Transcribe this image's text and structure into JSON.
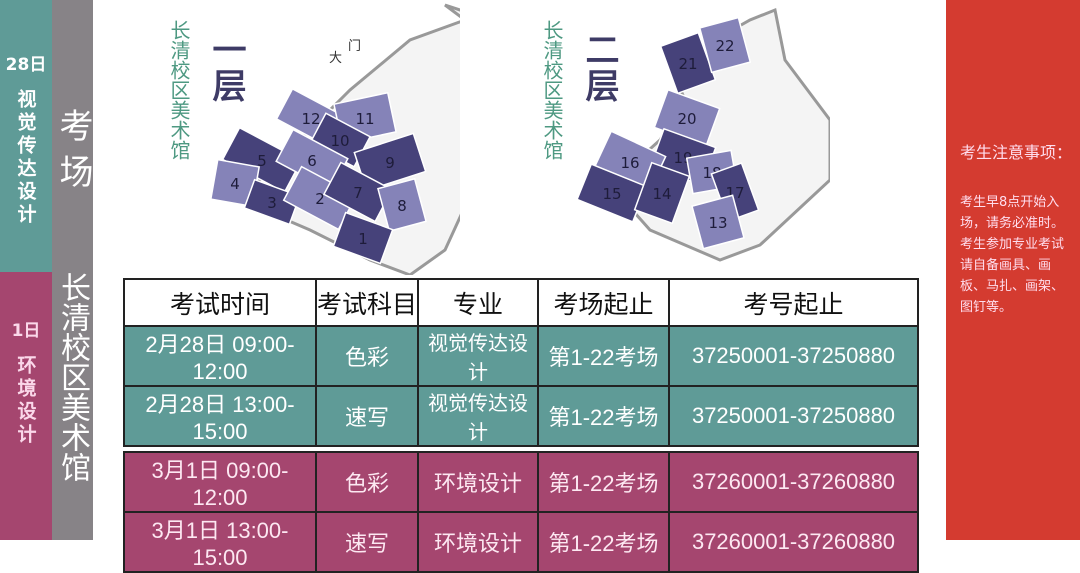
{
  "left_bands": [
    {
      "day": "28日",
      "major": "视觉传达设计"
    },
    {
      "day": "1日",
      "major": "环境设计"
    }
  ],
  "side_title": {
    "top": "考场",
    "bottom": "长清校区美术馆"
  },
  "floor1": {
    "building": "长清校区美术馆",
    "floor": "一层",
    "entrance": [
      "大",
      "门"
    ],
    "rooms": [
      {
        "label": "12",
        "shade": "light"
      },
      {
        "label": "11",
        "shade": "light"
      },
      {
        "label": "10",
        "shade": "dark"
      },
      {
        "label": "5",
        "shade": "dark"
      },
      {
        "label": "6",
        "shade": "light"
      },
      {
        "label": "9",
        "shade": "dark"
      },
      {
        "label": "4",
        "shade": "light"
      },
      {
        "label": "3",
        "shade": "dark"
      },
      {
        "label": "2",
        "shade": "light"
      },
      {
        "label": "7",
        "shade": "dark"
      },
      {
        "label": "8",
        "shade": "light"
      },
      {
        "label": "1",
        "shade": "dark"
      }
    ]
  },
  "floor2": {
    "building": "长清校区美术馆",
    "floor": "二层",
    "rooms": [
      {
        "label": "21",
        "shade": "dark"
      },
      {
        "label": "22",
        "shade": "light"
      },
      {
        "label": "20",
        "shade": "light"
      },
      {
        "label": "19",
        "shade": "dark"
      },
      {
        "label": "16",
        "shade": "light"
      },
      {
        "label": "18",
        "shade": "light"
      },
      {
        "label": "15",
        "shade": "dark"
      },
      {
        "label": "14",
        "shade": "dark"
      },
      {
        "label": "17",
        "shade": "dark"
      },
      {
        "label": "13",
        "shade": "light"
      }
    ]
  },
  "colors": {
    "teal": "#5f9b97",
    "magenta": "#a5466f",
    "red": "#d43b30",
    "room_dark": "#46427a",
    "room_light": "#8583b8"
  },
  "table": {
    "headers": [
      "考试时间",
      "考试科目",
      "专业",
      "考场起止",
      "考号起止"
    ],
    "rows": [
      [
        "2月28日  09:00-12:00",
        "色彩",
        "视觉传达设计",
        "第1-22考场",
        "37250001-37250880"
      ],
      [
        "2月28日  13:00-15:00",
        "速写",
        "视觉传达设计",
        "第1-22考场",
        "37250001-37250880"
      ],
      [
        "3月1日  09:00-12:00",
        "色彩",
        "环境设计",
        "第1-22考场",
        "37260001-37260880"
      ],
      [
        "3月1日  13:00-15:00",
        "速写",
        "环境设计",
        "第1-22考场",
        "37260001-37260880"
      ]
    ]
  },
  "notice": {
    "title": "考生注意事项：",
    "paragraphs": [
      "考生早8点开始入场，请务必准时。",
      "考生参加专业考试请自备画具、画板、马扎、画架、图钉等。"
    ]
  }
}
